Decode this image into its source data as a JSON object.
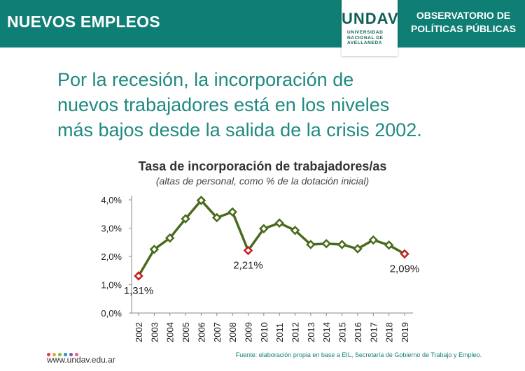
{
  "header": {
    "section_title": "NUEVOS EMPLEOS",
    "org_line1": "OBSERVATORIO DE",
    "org_line2": "POLÍTICAS PÚBLICAS",
    "logo_word": "UNDAV",
    "logo_sub1": "UNIVERSIDAD",
    "logo_sub2": "NACIONAL DE",
    "logo_sub3": "AVELLANEDA",
    "accent_color": "#0f7e74"
  },
  "headline": {
    "line1": "Por la recesión, la incorporación de",
    "line2": "nuevos trabajadores está en los niveles",
    "line3": "más bajos desde la salida de la crisis 2002."
  },
  "chart_data": {
    "type": "line",
    "title": "Tasa de incorporación de trabajadores/as",
    "subtitle": "(altas de personal, como % de la dotación inicial)",
    "xlabel": "",
    "ylabel": "",
    "categories": [
      "2002",
      "2003",
      "2004",
      "2005",
      "2006",
      "2007",
      "2008",
      "2009",
      "2010",
      "2011",
      "2012",
      "2013",
      "2014",
      "2015",
      "2016",
      "2017",
      "2018",
      "2019"
    ],
    "series": [
      {
        "values": [
          1.31,
          2.25,
          2.65,
          3.33,
          3.98,
          3.37,
          3.57,
          2.21,
          2.98,
          3.18,
          2.92,
          2.42,
          2.45,
          2.42,
          2.27,
          2.58,
          2.4,
          2.09
        ]
      }
    ],
    "ylim": [
      0,
      4
    ],
    "yticks": [
      "0,0%",
      "1,0%",
      "2,0%",
      "3,0%",
      "4,0%"
    ],
    "highlight_labels": [
      {
        "index": 0,
        "text": "1,31%"
      },
      {
        "index": 7,
        "text": "2,21%"
      },
      {
        "index": 17,
        "text": "2,09%"
      }
    ],
    "line_color": "#4a6b1e",
    "marker_color": "#4a6b1e",
    "highlight_color": "#c41e1e",
    "grid": false
  },
  "footer": {
    "url": "www.undav.edu.ar",
    "source": "Fuente: elaboración propia en base a EIL, Secretaría de Gobierno de Trabajo y Empleo.",
    "dot_colors": [
      "#e63b3b",
      "#f0a030",
      "#7fbf3f",
      "#2f8fd0",
      "#8a4fb0",
      "#e06090"
    ]
  }
}
